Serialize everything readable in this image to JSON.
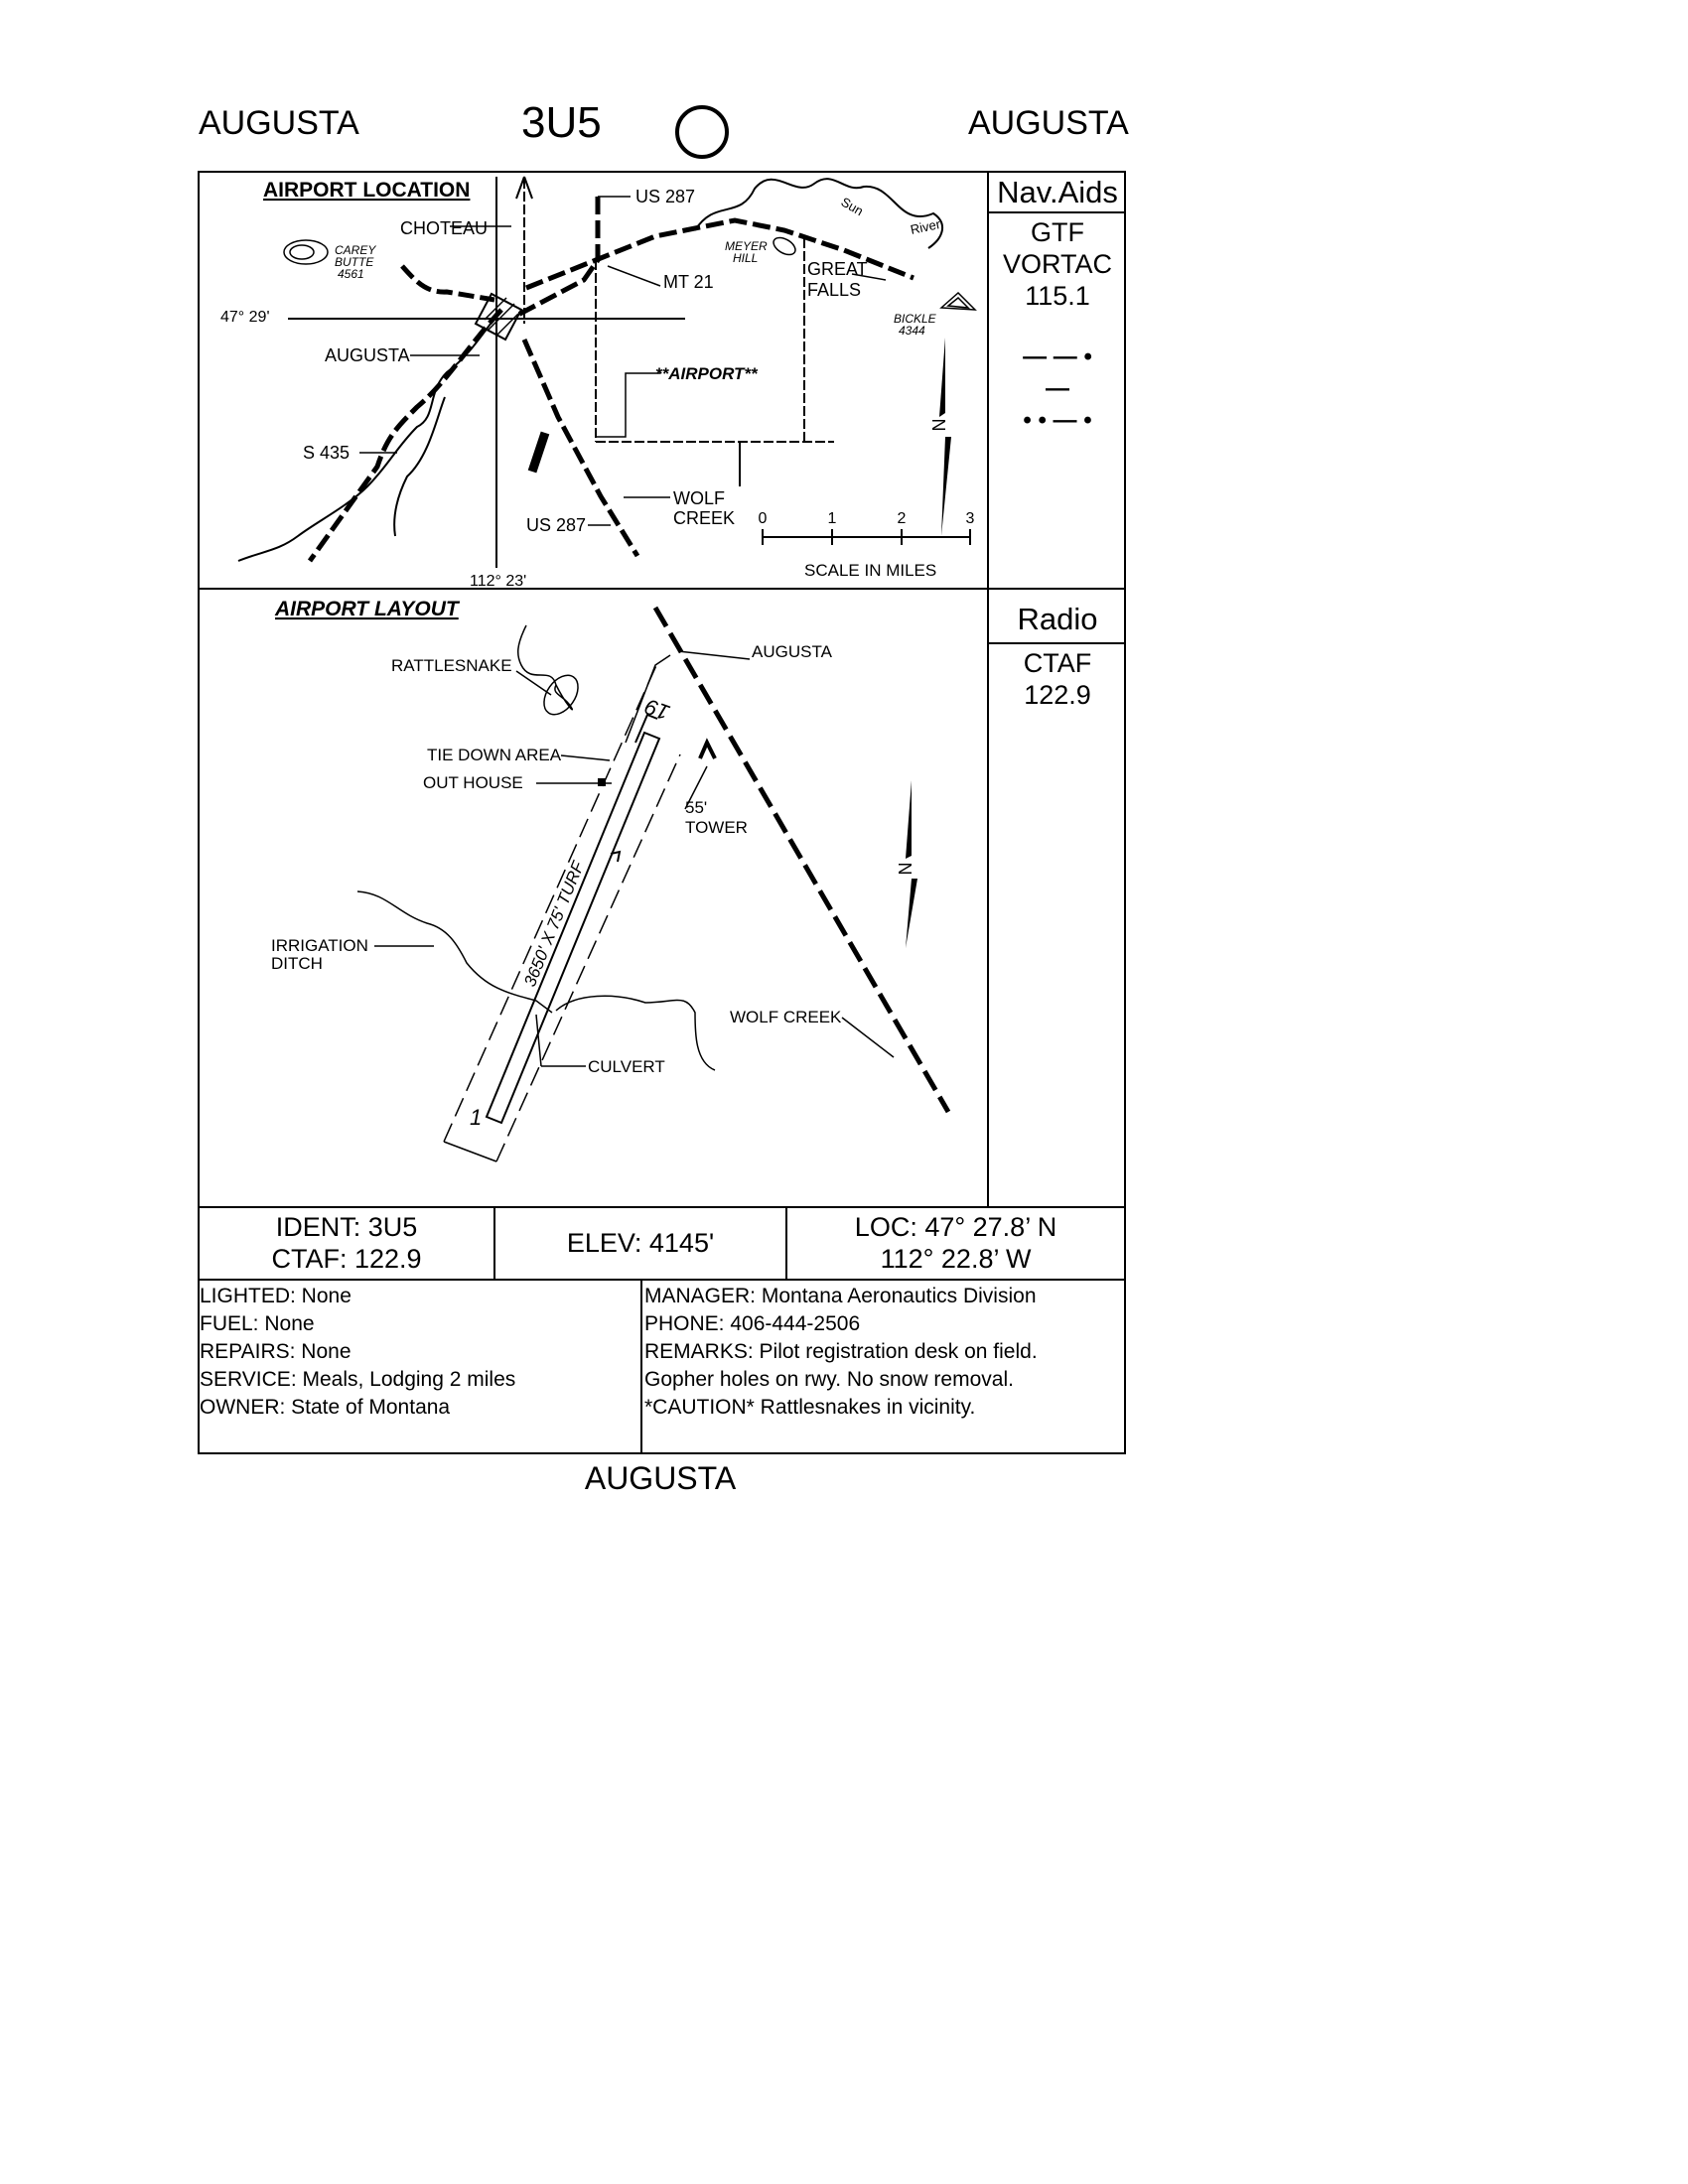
{
  "header": {
    "city_left": "AUGUSTA",
    "ident": "3U5",
    "city_right": "AUGUSTA"
  },
  "location_map": {
    "title": "AIRPORT LOCATION",
    "labels": {
      "choteau": "CHOTEAU",
      "us287_top": "US 287",
      "carey_butte": [
        "CAREY",
        "BUTTE",
        "4561"
      ],
      "meyer_hill": [
        "MEYER",
        "HILL"
      ],
      "sun": "Sun",
      "river": "River",
      "great_falls": [
        "GREAT",
        "FALLS"
      ],
      "mt21": "MT 21",
      "lat": "47° 29'",
      "bickle": [
        "BICKLE",
        "4344"
      ],
      "augusta": "AUGUSTA",
      "airport": "**AIRPORT**",
      "s435": "S 435",
      "wolf_creek": [
        "WOLF",
        "CREEK"
      ],
      "us287_bottom": "US 287",
      "lon": "112° 23'",
      "scale_title": "SCALE IN MILES",
      "scale_ticks": [
        "0",
        "1",
        "2",
        "3"
      ]
    }
  },
  "layout_map": {
    "title": "AIRPORT LAYOUT",
    "labels": {
      "rattlesnake": "RATTLESNAKE",
      "augusta": "AUGUSTA",
      "rwy_19": "19",
      "rwy_1": "1",
      "tie_down": "TIE DOWN AREA",
      "out_house": "OUT HOUSE",
      "tower": [
        "55'",
        "TOWER"
      ],
      "runway_dims": "3650' X 75'  TURF",
      "irrigation": [
        "IRRIGATION",
        "DITCH"
      ],
      "wolf_creek": "WOLF CREEK",
      "culvert": "CULVERT"
    }
  },
  "navaids": {
    "title": "Nav.Aids",
    "name": "GTF",
    "type": "VORTAC",
    "freq": "115.1",
    "morse": [
      "— — •",
      "—",
      "• • — •"
    ]
  },
  "radio": {
    "title": "Radio",
    "type": "CTAF",
    "freq": "122.9"
  },
  "info": {
    "ident": "IDENT: 3U5",
    "ctaf": "CTAF: 122.9",
    "elev": "ELEV: 4145'",
    "loc_lat": "LOC: 47° 27.8’ N",
    "loc_lon": "112° 22.8’ W"
  },
  "details_left": [
    "LIGHTED: None",
    "FUEL: None",
    "REPAIRS: None",
    "SERVICE: Meals, Lodging 2 miles",
    "OWNER: State of Montana"
  ],
  "details_right": [
    "MANAGER: Montana Aeronautics Division",
    "PHONE: 406-444-2506",
    "REMARKS: Pilot registration desk on field.",
    "Gopher holes on rwy. No snow removal.",
    "*CAUTION* Rattlesnakes in vicinity."
  ],
  "footer": "AUGUSTA"
}
